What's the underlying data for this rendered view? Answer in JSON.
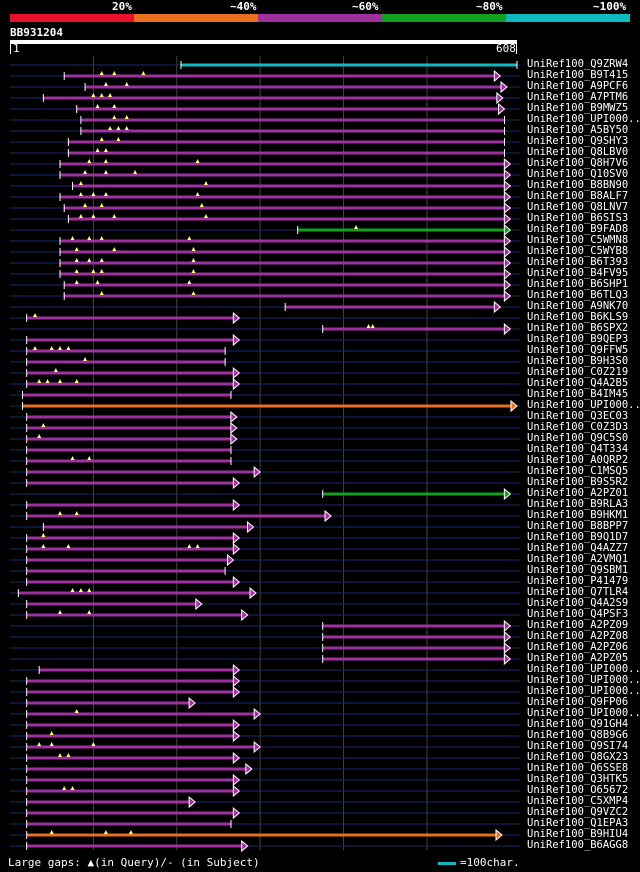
{
  "query": {
    "id": "BB931204",
    "start_label": "1",
    "end_label": "608",
    "length": 608
  },
  "identity_legend": [
    {
      "label": "20%",
      "color": "#e8102a"
    },
    {
      "label": "~40%",
      "color": "#e87020"
    },
    {
      "label": "~60%",
      "color": "#a030a0"
    },
    {
      "label": "~80%",
      "color": "#10a020"
    },
    {
      "label": "~100%",
      "color": "#10b8c0"
    }
  ],
  "footer": {
    "gaps_text": "Large gaps: ▲(in Query)/- (in Subject)",
    "scale_text": "=100char."
  },
  "chart_data": {
    "type": "alignment",
    "x_unit": "query residue",
    "x_range": [
      1,
      608
    ],
    "hits": [
      {
        "id": "UniRef100_Q9ZRW4",
        "start": 205,
        "end": 608,
        "identity_class": "~100%",
        "gaps": [],
        "right_arrow": false
      },
      {
        "id": "UniRef100_B9T415",
        "start": 65,
        "end": 588,
        "identity_class": "~60%",
        "gaps": [
          110,
          125,
          160
        ],
        "right_arrow": true
      },
      {
        "id": "UniRef100_A9PCF6",
        "start": 90,
        "end": 596,
        "identity_class": "~60%",
        "gaps": [
          115,
          140
        ],
        "right_arrow": true
      },
      {
        "id": "UniRef100_A7PTM6",
        "start": 40,
        "end": 591,
        "identity_class": "~60%",
        "gaps": [
          100,
          110,
          120
        ],
        "right_arrow": true
      },
      {
        "id": "UniRef100_B9MWZ5",
        "start": 80,
        "end": 593,
        "identity_class": "~60%",
        "gaps": [
          105,
          125
        ],
        "right_arrow": true
      },
      {
        "id": "UniRef100_UPI000..",
        "start": 85,
        "end": 593,
        "identity_class": "~60%",
        "gaps": [
          125,
          140
        ],
        "right_arrow": false
      },
      {
        "id": "UniRef100_A5BY50",
        "start": 85,
        "end": 593,
        "identity_class": "~60%",
        "gaps": [
          120,
          130,
          140
        ],
        "right_arrow": false
      },
      {
        "id": "UniRef100_Q9SHY3",
        "start": 70,
        "end": 593,
        "identity_class": "~60%",
        "gaps": [
          110,
          130
        ],
        "right_arrow": false
      },
      {
        "id": "UniRef100_Q8LBV0",
        "start": 70,
        "end": 593,
        "identity_class": "~60%",
        "gaps": [
          105,
          115
        ],
        "right_arrow": false
      },
      {
        "id": "UniRef100_Q8H7V6",
        "start": 60,
        "end": 600,
        "identity_class": "~60%",
        "gaps": [
          95,
          115,
          225
        ],
        "right_arrow": true
      },
      {
        "id": "UniRef100_Q10SV0",
        "start": 60,
        "end": 600,
        "identity_class": "~60%",
        "gaps": [
          90,
          115,
          150
        ],
        "right_arrow": true
      },
      {
        "id": "UniRef100_B8BN90",
        "start": 75,
        "end": 600,
        "identity_class": "~60%",
        "gaps": [
          85,
          235
        ],
        "right_arrow": true
      },
      {
        "id": "UniRef100_B8ALF7",
        "start": 60,
        "end": 600,
        "identity_class": "~60%",
        "gaps": [
          85,
          100,
          115,
          225
        ],
        "right_arrow": true
      },
      {
        "id": "UniRef100_Q8LNV7",
        "start": 65,
        "end": 600,
        "identity_class": "~60%",
        "gaps": [
          90,
          110,
          230
        ],
        "right_arrow": true
      },
      {
        "id": "UniRef100_B6SIS3",
        "start": 70,
        "end": 600,
        "identity_class": "~60%",
        "gaps": [
          85,
          100,
          125,
          235
        ],
        "right_arrow": true
      },
      {
        "id": "UniRef100_B9FAD8",
        "start": 345,
        "end": 600,
        "identity_class": "~80%",
        "gaps": [
          415
        ],
        "right_arrow": true
      },
      {
        "id": "UniRef100_C5WMN8",
        "start": 60,
        "end": 600,
        "identity_class": "~60%",
        "gaps": [
          75,
          95,
          110,
          215
        ],
        "right_arrow": true
      },
      {
        "id": "UniRef100_C5WYB8",
        "start": 60,
        "end": 600,
        "identity_class": "~60%",
        "gaps": [
          80,
          125,
          220
        ],
        "right_arrow": true
      },
      {
        "id": "UniRef100_B6T393",
        "start": 60,
        "end": 600,
        "identity_class": "~60%",
        "gaps": [
          80,
          95,
          110,
          220
        ],
        "right_arrow": true
      },
      {
        "id": "UniRef100_B4FV95",
        "start": 60,
        "end": 600,
        "identity_class": "~60%",
        "gaps": [
          80,
          100,
          110,
          220
        ],
        "right_arrow": true
      },
      {
        "id": "UniRef100_B6SHP1",
        "start": 65,
        "end": 600,
        "identity_class": "~60%",
        "gaps": [
          80,
          105,
          215
        ],
        "right_arrow": true
      },
      {
        "id": "UniRef100_B6TLQ3",
        "start": 65,
        "end": 600,
        "identity_class": "~60%",
        "gaps": [
          110,
          220
        ],
        "right_arrow": true
      },
      {
        "id": "UniRef100_A9NK70",
        "start": 330,
        "end": 588,
        "identity_class": "~60%",
        "gaps": [],
        "right_arrow": true
      },
      {
        "id": "UniRef100_B6KLS9",
        "start": 20,
        "end": 275,
        "identity_class": "~60%",
        "gaps": [
          30
        ],
        "right_arrow": true
      },
      {
        "id": "UniRef100_B6SPX2",
        "start": 375,
        "end": 600,
        "identity_class": "~60%",
        "gaps": [
          430,
          435
        ],
        "right_arrow": true
      },
      {
        "id": "UniRef100_B9QEP3",
        "start": 20,
        "end": 275,
        "identity_class": "~60%",
        "gaps": [],
        "right_arrow": true
      },
      {
        "id": "UniRef100_Q9FFW5",
        "start": 20,
        "end": 258,
        "identity_class": "~60%",
        "gaps": [
          30,
          50,
          60,
          70
        ],
        "right_arrow": false
      },
      {
        "id": "UniRef100_B9H3S0",
        "start": 20,
        "end": 258,
        "identity_class": "~60%",
        "gaps": [
          90
        ],
        "right_arrow": false
      },
      {
        "id": "UniRef100_C0Z219",
        "start": 20,
        "end": 275,
        "identity_class": "~60%",
        "gaps": [
          55
        ],
        "right_arrow": true
      },
      {
        "id": "UniRef100_Q4A2B5",
        "start": 20,
        "end": 275,
        "identity_class": "~60%",
        "gaps": [
          35,
          45,
          60,
          80
        ],
        "right_arrow": true
      },
      {
        "id": "UniRef100_B4IM45",
        "start": 15,
        "end": 265,
        "identity_class": "~60%",
        "gaps": [],
        "right_arrow": false
      },
      {
        "id": "UniRef100_UPI000..",
        "start": 15,
        "end": 608,
        "identity_class": "~40%",
        "gaps": [],
        "right_arrow": true
      },
      {
        "id": "UniRef100_Q3EC03",
        "start": 20,
        "end": 272,
        "identity_class": "~60%",
        "gaps": [],
        "right_arrow": true
      },
      {
        "id": "UniRef100_C0Z3D3",
        "start": 20,
        "end": 272,
        "identity_class": "~60%",
        "gaps": [
          40
        ],
        "right_arrow": true
      },
      {
        "id": "UniRef100_Q9C5S0",
        "start": 20,
        "end": 272,
        "identity_class": "~60%",
        "gaps": [
          35
        ],
        "right_arrow": true
      },
      {
        "id": "UniRef100_Q4T334",
        "start": 20,
        "end": 265,
        "identity_class": "~60%",
        "gaps": [],
        "right_arrow": false
      },
      {
        "id": "UniRef100_A0QRP2",
        "start": 20,
        "end": 265,
        "identity_class": "~60%",
        "gaps": [
          75,
          95
        ],
        "right_arrow": false
      },
      {
        "id": "UniRef100_C1MSQ5",
        "start": 20,
        "end": 300,
        "identity_class": "~60%",
        "gaps": [],
        "right_arrow": true
      },
      {
        "id": "UniRef100_B9S5R2",
        "start": 20,
        "end": 275,
        "identity_class": "~60%",
        "gaps": [],
        "right_arrow": true
      },
      {
        "id": "UniRef100_A2PZ01",
        "start": 375,
        "end": 600,
        "identity_class": "~80%",
        "gaps": [],
        "right_arrow": true
      },
      {
        "id": "UniRef100_B9RLA3",
        "start": 20,
        "end": 275,
        "identity_class": "~60%",
        "gaps": [],
        "right_arrow": true
      },
      {
        "id": "UniRef100_B9HKM1",
        "start": 20,
        "end": 385,
        "identity_class": "~60%",
        "gaps": [
          60,
          80
        ],
        "right_arrow": true
      },
      {
        "id": "UniRef100_B8BPP7",
        "start": 40,
        "end": 292,
        "identity_class": "~60%",
        "gaps": [],
        "right_arrow": true
      },
      {
        "id": "UniRef100_B9Q1D7",
        "start": 20,
        "end": 275,
        "identity_class": "~60%",
        "gaps": [
          40
        ],
        "right_arrow": true
      },
      {
        "id": "UniRef100_Q4AZZ7",
        "start": 20,
        "end": 275,
        "identity_class": "~60%",
        "gaps": [
          40,
          70,
          215,
          225
        ],
        "right_arrow": true
      },
      {
        "id": "UniRef100_A2VMQ1",
        "start": 20,
        "end": 268,
        "identity_class": "~60%",
        "gaps": [],
        "right_arrow": true
      },
      {
        "id": "UniRef100_Q9SBM1",
        "start": 20,
        "end": 258,
        "identity_class": "~60%",
        "gaps": [],
        "right_arrow": false
      },
      {
        "id": "UniRef100_P41479",
        "start": 20,
        "end": 275,
        "identity_class": "~60%",
        "gaps": [],
        "right_arrow": true
      },
      {
        "id": "UniRef100_Q7TLR4",
        "start": 10,
        "end": 295,
        "identity_class": "~60%",
        "gaps": [
          75,
          85,
          95
        ],
        "right_arrow": true
      },
      {
        "id": "UniRef100_Q4A2S9",
        "start": 20,
        "end": 230,
        "identity_class": "~60%",
        "gaps": [],
        "right_arrow": true
      },
      {
        "id": "UniRef100_Q4PSF3",
        "start": 20,
        "end": 285,
        "identity_class": "~60%",
        "gaps": [
          60,
          95
        ],
        "right_arrow": true
      },
      {
        "id": "UniRef100_A2PZ09",
        "start": 375,
        "end": 600,
        "identity_class": "~60%",
        "gaps": [],
        "right_arrow": true
      },
      {
        "id": "UniRef100_A2PZ08",
        "start": 375,
        "end": 600,
        "identity_class": "~60%",
        "gaps": [],
        "right_arrow": true
      },
      {
        "id": "UniRef100_A2PZ06",
        "start": 375,
        "end": 600,
        "identity_class": "~60%",
        "gaps": [],
        "right_arrow": true
      },
      {
        "id": "UniRef100_A2PZ05",
        "start": 375,
        "end": 600,
        "identity_class": "~60%",
        "gaps": [],
        "right_arrow": true
      },
      {
        "id": "UniRef100_UPI000..",
        "start": 35,
        "end": 275,
        "identity_class": "~60%",
        "gaps": [],
        "right_arrow": true
      },
      {
        "id": "UniRef100_UPI000..",
        "start": 20,
        "end": 275,
        "identity_class": "~60%",
        "gaps": [],
        "right_arrow": true
      },
      {
        "id": "UniRef100_UPI000..",
        "start": 20,
        "end": 275,
        "identity_class": "~60%",
        "gaps": [],
        "right_arrow": true
      },
      {
        "id": "UniRef100_Q9FP06",
        "start": 20,
        "end": 222,
        "identity_class": "~60%",
        "gaps": [],
        "right_arrow": true
      },
      {
        "id": "UniRef100_UPI000..",
        "start": 20,
        "end": 300,
        "identity_class": "~60%",
        "gaps": [
          80
        ],
        "right_arrow": true
      },
      {
        "id": "UniRef100_Q91GH4",
        "start": 20,
        "end": 275,
        "identity_class": "~60%",
        "gaps": [],
        "right_arrow": true
      },
      {
        "id": "UniRef100_Q8B9G6",
        "start": 20,
        "end": 275,
        "identity_class": "~60%",
        "gaps": [
          50
        ],
        "right_arrow": true
      },
      {
        "id": "UniRef100_Q9SI74",
        "start": 20,
        "end": 300,
        "identity_class": "~60%",
        "gaps": [
          35,
          50,
          100
        ],
        "right_arrow": true
      },
      {
        "id": "UniRef100_Q8GX23",
        "start": 20,
        "end": 275,
        "identity_class": "~60%",
        "gaps": [
          60,
          70
        ],
        "right_arrow": true
      },
      {
        "id": "UniRef100_Q6SSE8",
        "start": 20,
        "end": 290,
        "identity_class": "~60%",
        "gaps": [],
        "right_arrow": true
      },
      {
        "id": "UniRef100_Q3HTK5",
        "start": 20,
        "end": 275,
        "identity_class": "~60%",
        "gaps": [],
        "right_arrow": true
      },
      {
        "id": "UniRef100_O65672",
        "start": 20,
        "end": 275,
        "identity_class": "~60%",
        "gaps": [
          65,
          75
        ],
        "right_arrow": true
      },
      {
        "id": "UniRef100_C5XMP4",
        "start": 20,
        "end": 222,
        "identity_class": "~60%",
        "gaps": [],
        "right_arrow": true
      },
      {
        "id": "UniRef100_Q9VZC2",
        "start": 20,
        "end": 275,
        "identity_class": "~60%",
        "gaps": [],
        "right_arrow": true
      },
      {
        "id": "UniRef100_Q1EPA3",
        "start": 20,
        "end": 265,
        "identity_class": "~60%",
        "gaps": [],
        "right_arrow": false
      },
      {
        "id": "UniRef100_B9HIU4",
        "start": 20,
        "end": 590,
        "identity_class": "~40%",
        "gaps": [
          50,
          115,
          145
        ],
        "right_arrow": true
      },
      {
        "id": "UniRef100_B6AGG8",
        "start": 20,
        "end": 285,
        "identity_class": "~60%",
        "gaps": [],
        "right_arrow": true
      }
    ]
  }
}
